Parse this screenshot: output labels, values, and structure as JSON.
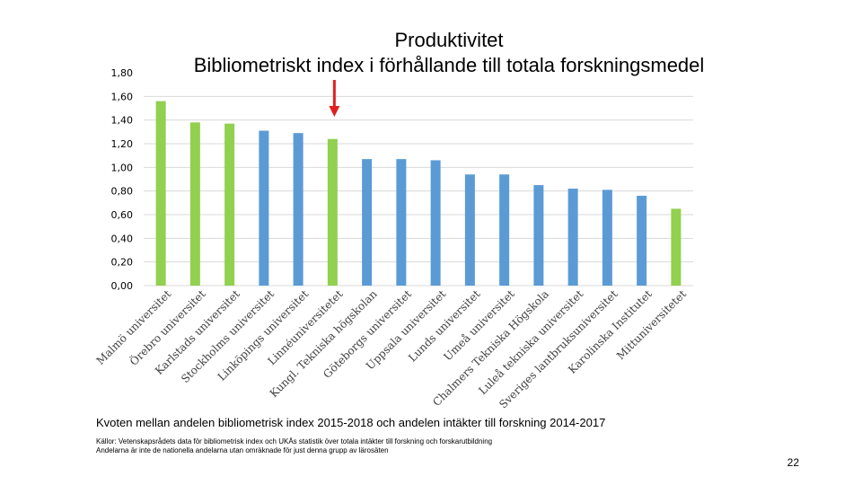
{
  "title": "Produktivitet",
  "subtitle": "Bibliometriskt index i förhållande till totala forskningsmedel",
  "caption": "Kvoten mellan andelen bibliometrisk index 2015-2018 och andelen intäkter till forskning 2014-2017",
  "source_line1": "Källor: Vetenskapsrådets data för bibliometrisk index och UKÄs statistik över totala intäkter till forskning och forskarutbildning",
  "source_line2": "Andelarna är inte de nationella andelarna utan omräknade för just denna grupp av lärosäten",
  "page_number": "22",
  "colors": {
    "green": "#92D050",
    "blue": "#5B9BD5",
    "arrow": "#E02020",
    "grid": "#D9D9D9",
    "axis_text": "#404040"
  },
  "arrow_icon": "red-down-arrow-icon",
  "chart_data": {
    "type": "bar",
    "title": "",
    "xlabel": "",
    "ylabel": "",
    "ylim": [
      0,
      1.8
    ],
    "yticks": [
      "0,00",
      "0,20",
      "0,40",
      "0,60",
      "0,80",
      "1,00",
      "1,20",
      "1,40",
      "1,60",
      "1,80"
    ],
    "grid": true,
    "categories": [
      "Malmö universitet",
      "Örebro universitet",
      "Karlstads universitet",
      "Stockholms universitet",
      "Linköpings universitet",
      "Linnéuniversitetet",
      "Kungl. Tekniska högskolan",
      "Göteborgs universitet",
      "Uppsala universitet",
      "Lunds universitet",
      "Umeå universitet",
      "Chalmers Tekniska Högskola",
      "Luleå tekniska universitet",
      "Sveriges lantbruksuniversitet",
      "Karolinska Institutet",
      "Mittuniversitetet"
    ],
    "values": [
      1.56,
      1.38,
      1.37,
      1.31,
      1.29,
      1.24,
      1.07,
      1.07,
      1.06,
      0.94,
      0.94,
      0.85,
      0.82,
      0.81,
      0.76,
      0.65
    ],
    "bar_colors": [
      "green",
      "green",
      "green",
      "blue",
      "blue",
      "green",
      "blue",
      "blue",
      "blue",
      "blue",
      "blue",
      "blue",
      "blue",
      "blue",
      "blue",
      "green"
    ],
    "arrow_points_to": "Linnéuniversitetet"
  }
}
